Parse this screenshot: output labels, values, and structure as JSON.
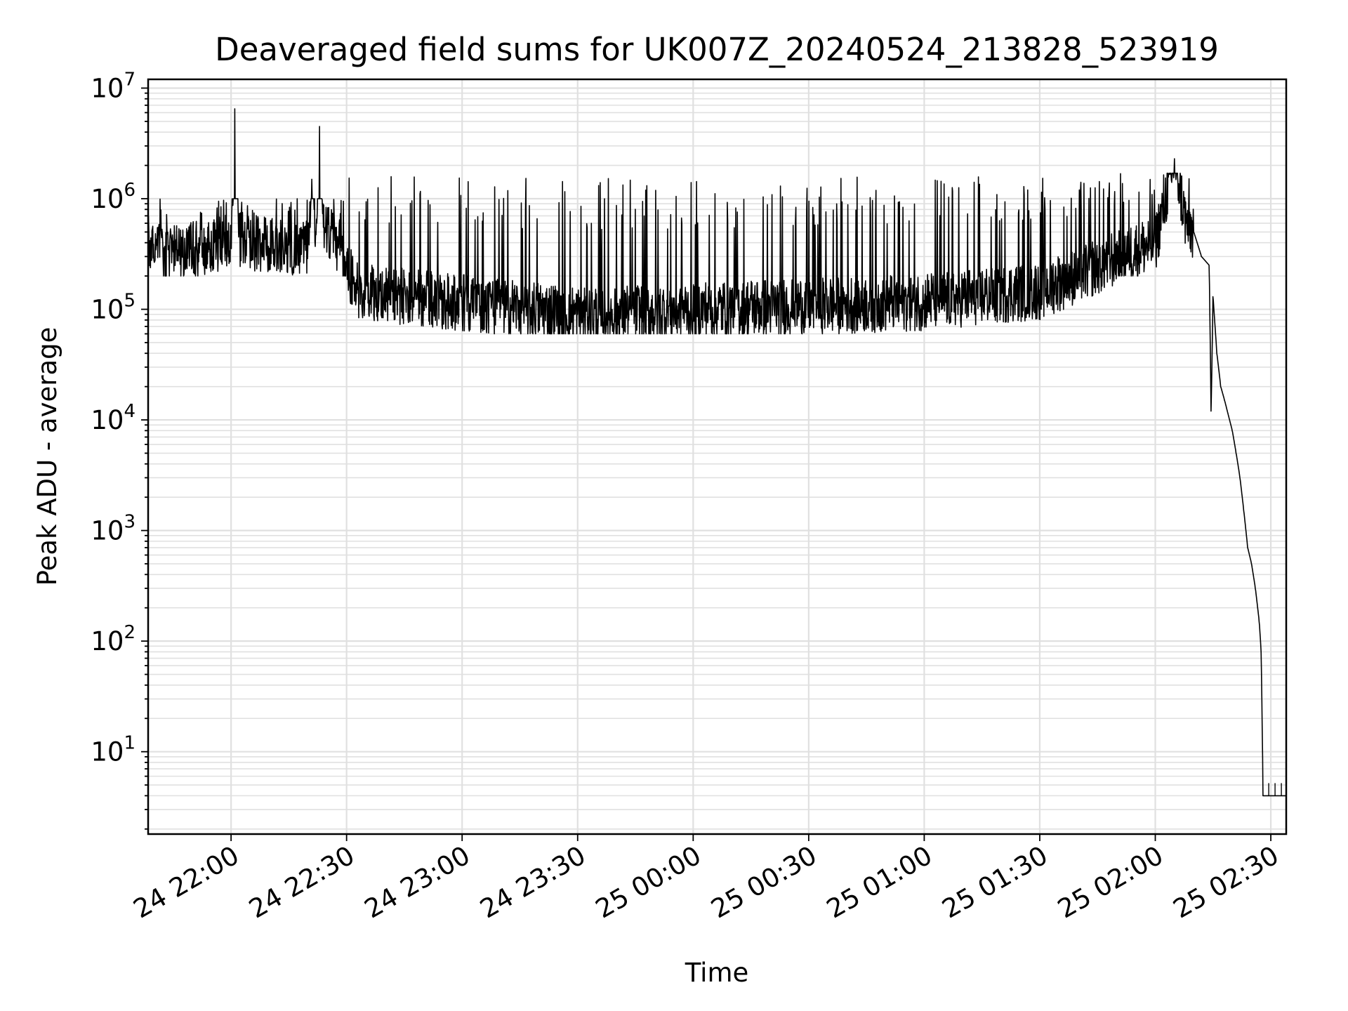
{
  "chart_data": {
    "type": "line",
    "title": "Deaveraged field sums for UK007Z_20240524_213828_523919",
    "xlabel": "Time",
    "ylabel": "Peak ADU - average",
    "yscale": "log",
    "ylim": [
      1.8,
      12000000
    ],
    "xlim": [
      "2024-05-24 21:38:28",
      "2024-05-25 02:34:00"
    ],
    "grid": true,
    "line_color": "#000000",
    "grid_color": "#e0e0e0",
    "x_ticks": [
      {
        "t": "2024-05-24 22:00",
        "label": "24 22:00"
      },
      {
        "t": "2024-05-24 22:30",
        "label": "24 22:30"
      },
      {
        "t": "2024-05-24 23:00",
        "label": "24 23:00"
      },
      {
        "t": "2024-05-24 23:30",
        "label": "24 23:30"
      },
      {
        "t": "2024-05-25 00:00",
        "label": "25 00:00"
      },
      {
        "t": "2024-05-25 00:30",
        "label": "25 00:30"
      },
      {
        "t": "2024-05-25 01:00",
        "label": "25 01:00"
      },
      {
        "t": "2024-05-25 01:30",
        "label": "25 01:30"
      },
      {
        "t": "2024-05-25 02:00",
        "label": "25 02:00"
      },
      {
        "t": "2024-05-25 02:30",
        "label": "25 02:30"
      }
    ],
    "y_ticks": [
      {
        "value": 10,
        "base": "10",
        "exp": "1"
      },
      {
        "value": 100,
        "base": "10",
        "exp": "2"
      },
      {
        "value": 1000,
        "base": "10",
        "exp": "3"
      },
      {
        "value": 10000,
        "base": "10",
        "exp": "4"
      },
      {
        "value": 100000,
        "base": "10",
        "exp": "5"
      },
      {
        "value": 1000000,
        "base": "10",
        "exp": "6"
      },
      {
        "value": 10000000,
        "base": "10",
        "exp": "7"
      }
    ],
    "series": [
      {
        "x": [
          "2024-05-24 21:38:28",
          "2024-05-24 21:45",
          "2024-05-24 21:52",
          "2024-05-24 21:58",
          "2024-05-24 22:00",
          "2024-05-24 22:01",
          "2024-05-24 22:02",
          "2024-05-24 22:08",
          "2024-05-24 22:15",
          "2024-05-24 22:19",
          "2024-05-24 22:20",
          "2024-05-24 22:21",
          "2024-05-24 22:22",
          "2024-05-24 22:23",
          "2024-05-24 22:24",
          "2024-05-24 22:28",
          "2024-05-24 22:30",
          "2024-05-24 22:33",
          "2024-05-24 23:00",
          "2024-05-24 23:30",
          "2024-05-25 00:00",
          "2024-05-25 00:30",
          "2024-05-25 01:00",
          "2024-05-25 01:30",
          "2024-05-25 01:50",
          "2024-05-25 02:00",
          "2024-05-25 02:05",
          "2024-05-25 02:08",
          "2024-05-25 02:10",
          "2024-05-25 02:12",
          "2024-05-25 02:14",
          "2024-05-25 02:14:30",
          "2024-05-25 02:15",
          "2024-05-25 02:16",
          "2024-05-25 02:17",
          "2024-05-25 02:18",
          "2024-05-25 02:20",
          "2024-05-25 02:21",
          "2024-05-25 02:22",
          "2024-05-25 02:23",
          "2024-05-25 02:24",
          "2024-05-25 02:25",
          "2024-05-25 02:26",
          "2024-05-25 02:27",
          "2024-05-25 02:27:30",
          "2024-05-25 02:28",
          "2024-05-25 02:34"
        ],
        "y": [
          350000,
          330000,
          380000,
          420000,
          430000,
          6500000,
          450000,
          400000,
          380000,
          370000,
          400000,
          1500000,
          500000,
          4500000,
          550000,
          400000,
          250000,
          150000,
          120000,
          90000,
          100000,
          110000,
          120000,
          150000,
          300000,
          400000,
          2300000,
          600000,
          500000,
          300000,
          250000,
          12000,
          130000,
          40000,
          20000,
          15000,
          8000,
          5000,
          3000,
          1500,
          700,
          500,
          300,
          150,
          80,
          4,
          4
        ],
        "noise": [
          {
            "from": "2024-05-24 21:38:28",
            "to": "2024-05-24 22:30",
            "low": 200000,
            "high": 1000000
          },
          {
            "from": "2024-05-24 22:30",
            "to": "2024-05-25 01:50",
            "low": 60000,
            "high": 1600000
          },
          {
            "from": "2024-05-25 01:50",
            "to": "2024-05-25 02:10",
            "low": 200000,
            "high": 1700000
          }
        ]
      }
    ]
  }
}
